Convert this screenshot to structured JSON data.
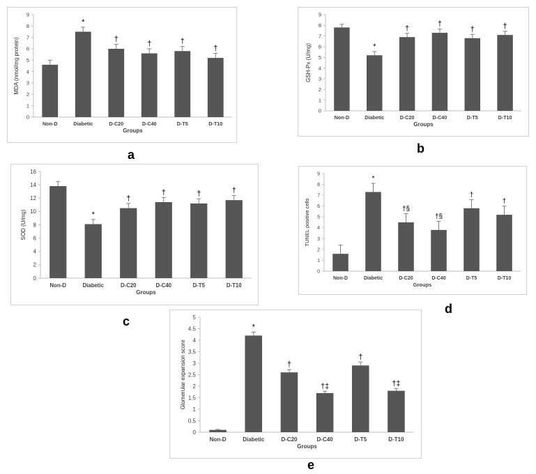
{
  "chart_data": [
    {
      "id": "a",
      "type": "bar",
      "panel_label": "a",
      "xlabel": "Groups",
      "ylabel": "MDA (nmol/mg protein)",
      "ylim": [
        0,
        9
      ],
      "yticks": [
        "0",
        "1",
        "2",
        "3",
        "4",
        "5",
        "6",
        "7",
        "8",
        "9"
      ],
      "categories": [
        "Non-D",
        "Diabetic",
        "D-C20",
        "D-C40",
        "D-T5",
        "D-T10"
      ],
      "values": [
        4.6,
        7.5,
        6.0,
        5.6,
        5.8,
        5.2
      ],
      "errors": [
        0.4,
        0.4,
        0.4,
        0.4,
        0.4,
        0.4
      ],
      "marks": [
        "",
        "*",
        "†",
        "†",
        "†",
        "†"
      ],
      "bar_color": "#555555",
      "grid": false
    },
    {
      "id": "b",
      "type": "bar",
      "panel_label": "b",
      "xlabel": "Groups",
      "ylabel": "GSH-Px (U/mg)",
      "ylim": [
        0,
        9
      ],
      "yticks": [
        "0",
        "1",
        "2",
        "3",
        "4",
        "5",
        "6",
        "7",
        "8",
        "9"
      ],
      "categories": [
        "Non-D",
        "Diabetic",
        "D-C20",
        "D-C40",
        "D-T5",
        "D-T10"
      ],
      "values": [
        7.8,
        5.2,
        6.9,
        7.3,
        6.8,
        7.1
      ],
      "errors": [
        0.3,
        0.35,
        0.35,
        0.35,
        0.35,
        0.35
      ],
      "marks": [
        "",
        "*",
        "†",
        "†",
        "†",
        "†"
      ],
      "bar_color": "#555555",
      "grid": false
    },
    {
      "id": "c",
      "type": "bar",
      "panel_label": "c",
      "xlabel": "Groups",
      "ylabel": "SOD (U/mg)",
      "ylim": [
        0,
        16
      ],
      "yticks": [
        "0",
        "2",
        "4",
        "6",
        "8",
        "10",
        "12",
        "14",
        "16"
      ],
      "categories": [
        "Non-D",
        "Diabetic",
        "D-C20",
        "D-C40",
        "D-T5",
        "D-T10"
      ],
      "values": [
        13.8,
        8.1,
        10.5,
        11.4,
        11.2,
        11.7
      ],
      "errors": [
        0.7,
        0.7,
        0.7,
        0.7,
        0.7,
        0.7
      ],
      "marks": [
        "",
        "*",
        "†",
        "†",
        "†",
        "†"
      ],
      "bar_color": "#555555",
      "grid": false
    },
    {
      "id": "d",
      "type": "bar",
      "panel_label": "d",
      "xlabel": "Groups",
      "ylabel": "TUNEL positive cells",
      "ylim": [
        0,
        9
      ],
      "yticks": [
        "0",
        "1",
        "2",
        "3",
        "4",
        "5",
        "6",
        "7",
        "8",
        "9"
      ],
      "categories": [
        "Non-D",
        "Diabetic",
        "D-C20",
        "D-C40",
        "D-T5",
        "D-T10"
      ],
      "values": [
        1.6,
        7.3,
        4.5,
        3.8,
        5.8,
        5.2
      ],
      "errors": [
        0.8,
        0.8,
        0.8,
        0.8,
        0.8,
        0.8
      ],
      "marks": [
        "",
        "*",
        "†§",
        "†§",
        "†",
        "†"
      ],
      "bar_color": "#555555",
      "grid": false
    },
    {
      "id": "e",
      "type": "bar",
      "panel_label": "e",
      "xlabel": "Groups",
      "ylabel": "Glomerular expansion score",
      "ylim": [
        0,
        5
      ],
      "yticks": [
        "0",
        "0.5",
        "1",
        "1.5",
        "2",
        "2.5",
        "3",
        "3.5",
        "4",
        "4.5",
        "5"
      ],
      "categories": [
        "Non-D",
        "Diabetic",
        "D-C20",
        "D-C40",
        "D-T5",
        "D-T10"
      ],
      "values": [
        0.1,
        4.2,
        2.6,
        1.7,
        2.9,
        1.8
      ],
      "errors": [
        0.02,
        0.15,
        0.12,
        0.08,
        0.15,
        0.1
      ],
      "marks": [
        "",
        "*",
        "†",
        "†‡",
        "†",
        "†‡"
      ],
      "bar_color": "#555555",
      "grid": false
    }
  ]
}
